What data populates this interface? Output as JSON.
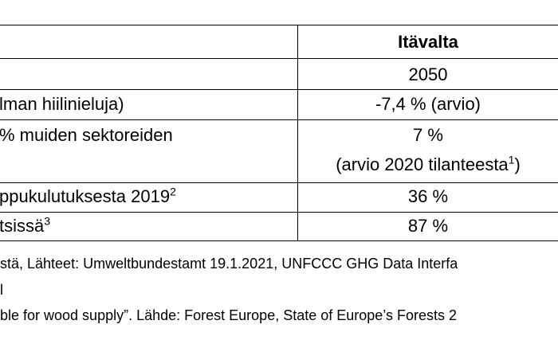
{
  "table": {
    "header": {
      "right": "Itävalta"
    },
    "rows": [
      {
        "left": "",
        "right": "2050"
      },
      {
        "left": "lman hiilinieluja)",
        "right": "-7,4 % (arvio)"
      },
      {
        "left": "% muiden sektoreiden",
        "right": "7 %",
        "right_line2": "(arvio 2020 tilanteesta",
        "right_line2_sup": "1",
        "right_line2_end": ")"
      },
      {
        "left": "ppukulutuksesta 2019",
        "left_sup": "2",
        "right": "36 %"
      },
      {
        "left": "tsissä",
        "left_sup": "3",
        "right": "87 %"
      }
    ]
  },
  "notes": [
    "stä, Lähteet: Umweltbundestamt 19.1.2021, UNFCCC GHG Data Interfa",
    "l",
    "ble for wood supply”. Lähde: Forest Europe, State of Europe’s Forests 2"
  ]
}
